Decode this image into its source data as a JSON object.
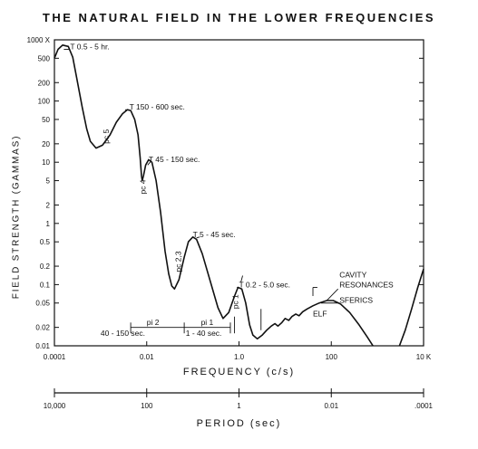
{
  "chart_data": {
    "type": "line",
    "title": "THE NATURAL FIELD IN THE LOWER FREQUENCIES",
    "xlabel": "FREQUENCY (c/s)",
    "ylabel": "FIELD STRENGTH (GAMMAS)",
    "x_scale": "log",
    "y_scale": "log",
    "xlim": [
      0.0001,
      10000
    ],
    "ylim": [
      0.01,
      1000
    ],
    "x_ticks": [
      {
        "value": 0.0001,
        "label": "0.0001"
      },
      {
        "value": 0.01,
        "label": "0.01"
      },
      {
        "value": 1,
        "label": "1.0"
      },
      {
        "value": 100,
        "label": "100"
      },
      {
        "value": 10000,
        "label": "10 K"
      }
    ],
    "y_ticks": [
      {
        "value": 1000,
        "label": "1000 X"
      },
      {
        "value": 500,
        "label": "500"
      },
      {
        "value": 200,
        "label": "200"
      },
      {
        "value": 100,
        "label": "100"
      },
      {
        "value": 50,
        "label": "50"
      },
      {
        "value": 20,
        "label": "20"
      },
      {
        "value": 10,
        "label": "10"
      },
      {
        "value": 5,
        "label": "5"
      },
      {
        "value": 2,
        "label": "2"
      },
      {
        "value": 1,
        "label": "1"
      },
      {
        "value": 0.5,
        "label": "0.5"
      },
      {
        "value": 0.2,
        "label": "0.2"
      },
      {
        "value": 0.1,
        "label": "0.1"
      },
      {
        "value": 0.05,
        "label": "0.05"
      },
      {
        "value": 0.02,
        "label": "0.02"
      },
      {
        "value": 0.01,
        "label": "0.01"
      }
    ],
    "series": [
      {
        "points": [
          [
            0.0001,
            500
          ],
          [
            0.00012,
            700
          ],
          [
            0.00015,
            820
          ],
          [
            0.0002,
            780
          ],
          [
            0.00025,
            520
          ],
          [
            0.0003,
            250
          ],
          [
            0.0004,
            80
          ],
          [
            0.0005,
            35
          ],
          [
            0.0006,
            22
          ],
          [
            0.0008,
            17
          ],
          [
            0.0011,
            19
          ],
          [
            0.0016,
            28
          ],
          [
            0.0022,
            45
          ],
          [
            0.003,
            62
          ],
          [
            0.0038,
            72
          ],
          [
            0.0045,
            70
          ],
          [
            0.0055,
            50
          ],
          [
            0.0065,
            28
          ],
          [
            0.0072,
            12
          ],
          [
            0.0077,
            6
          ],
          [
            0.008,
            5
          ],
          [
            0.0085,
            6
          ],
          [
            0.0095,
            9
          ],
          [
            0.011,
            11
          ],
          [
            0.013,
            10
          ],
          [
            0.016,
            5
          ],
          [
            0.02,
            1.5
          ],
          [
            0.025,
            0.35
          ],
          [
            0.03,
            0.15
          ],
          [
            0.035,
            0.095
          ],
          [
            0.04,
            0.085
          ],
          [
            0.05,
            0.12
          ],
          [
            0.065,
            0.28
          ],
          [
            0.08,
            0.5
          ],
          [
            0.1,
            0.6
          ],
          [
            0.12,
            0.55
          ],
          [
            0.16,
            0.32
          ],
          [
            0.25,
            0.1
          ],
          [
            0.35,
            0.042
          ],
          [
            0.45,
            0.028
          ],
          [
            0.6,
            0.035
          ],
          [
            0.8,
            0.065
          ],
          [
            0.95,
            0.09
          ],
          [
            1.15,
            0.085
          ],
          [
            1.4,
            0.05
          ],
          [
            1.7,
            0.022
          ],
          [
            2,
            0.015
          ],
          [
            2.5,
            0.013
          ],
          [
            3.2,
            0.015
          ],
          [
            4,
            0.018
          ],
          [
            5,
            0.021
          ],
          [
            6,
            0.023
          ],
          [
            7,
            0.021
          ],
          [
            8.5,
            0.024
          ],
          [
            10,
            0.028
          ],
          [
            12,
            0.026
          ],
          [
            14,
            0.03
          ],
          [
            17,
            0.033
          ],
          [
            20,
            0.031
          ],
          [
            24,
            0.036
          ],
          [
            30,
            0.04
          ],
          [
            40,
            0.045
          ],
          [
            55,
            0.05
          ],
          [
            80,
            0.055
          ],
          [
            110,
            0.055
          ],
          [
            160,
            0.048
          ],
          [
            250,
            0.035
          ],
          [
            400,
            0.022
          ],
          [
            600,
            0.014
          ],
          [
            800,
            0.01
          ]
        ]
      },
      {
        "points": [
          [
            3000,
            0.01
          ],
          [
            4000,
            0.018
          ],
          [
            5500,
            0.04
          ],
          [
            7500,
            0.09
          ],
          [
            10000,
            0.18
          ]
        ]
      }
    ],
    "annotations": [
      {
        "text": "T 0.5 - 5 hr.",
        "x": 0.00022,
        "y": 700
      },
      {
        "text": "T 150 - 600 sec.",
        "x": 0.0042,
        "y": 72
      },
      {
        "text": "pc 5",
        "x": 0.0015,
        "y": 20,
        "rotated": true
      },
      {
        "text": "T 45 - 150 sec.",
        "x": 0.011,
        "y": 10
      },
      {
        "text": "pc 4",
        "x": 0.0095,
        "y": 3,
        "rotated": true
      },
      {
        "text": "T 5 - 45 sec.",
        "x": 0.1,
        "y": 0.6
      },
      {
        "text": "pc 2,3",
        "x": 0.055,
        "y": 0.16,
        "rotated": true
      },
      {
        "text": "T 0.2 - 5.0 sec.",
        "x": 1.0,
        "y": 0.09
      },
      {
        "text": "pc 1",
        "x": 0.95,
        "y": 0.04,
        "rotated": true
      },
      {
        "text": "CAVITY",
        "x": 150,
        "y": 0.13
      },
      {
        "text": "RESONANCES",
        "x": 150,
        "y": 0.09
      },
      {
        "text": "SFERICS",
        "x": 150,
        "y": 0.05
      },
      {
        "text": "ELF",
        "x": 40,
        "y": 0.03
      },
      {
        "text": "pi 2",
        "x": 0.01,
        "y": 0.022
      },
      {
        "text": "pi 1",
        "x": 0.15,
        "y": 0.022
      },
      {
        "text": "40 - 150 sec.",
        "x": 0.001,
        "y": 0.0145
      },
      {
        "text": "1 - 40 sec.",
        "x": 0.07,
        "y": 0.0145
      }
    ]
  },
  "period_axis": {
    "label": "PERIOD (sec)",
    "ticks": [
      {
        "value": 10000,
        "label": "10,000"
      },
      {
        "value": 100,
        "label": "100"
      },
      {
        "value": 1,
        "label": "1"
      },
      {
        "value": 0.01,
        "label": "0.01"
      },
      {
        "value": 0.0001,
        "label": ".0001"
      }
    ]
  }
}
